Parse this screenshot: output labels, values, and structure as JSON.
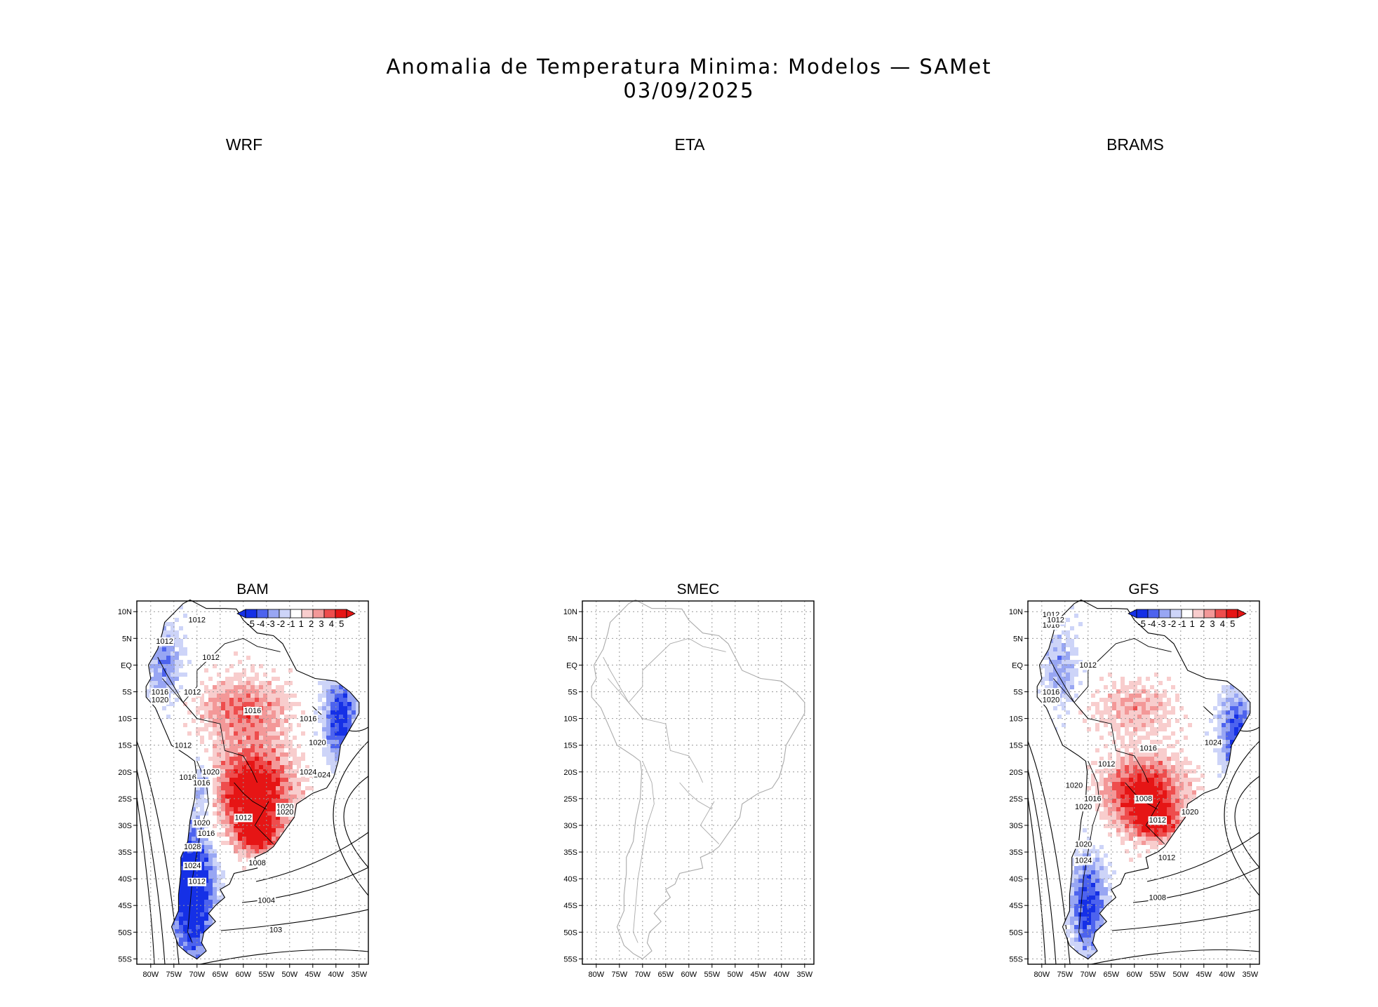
{
  "title": {
    "line1": "Anomalia de Temperatura Minima: Modelos — SAMet",
    "line2": "03/09/2025"
  },
  "panels_top": [
    {
      "label": "WRF"
    },
    {
      "label": "ETA"
    },
    {
      "label": "BRAMS"
    }
  ],
  "colors": {
    "cold_max": "#1530e6",
    "cold": "#4d63ee",
    "cool": "#98a6f3",
    "cool_light": "#cdd4f8",
    "warm_light": "#f8cdcd",
    "warm": "#f39898",
    "hot": "#ee4d4d",
    "hot_max": "#e61515",
    "grid": "#999999",
    "contour": "#000000",
    "gray_coast": "#aaaaaa"
  },
  "chart_data": [
    {
      "type": "heatmap",
      "panel": "BAM",
      "title": "BAM",
      "variable": "Minimum temperature anomaly (°C) with sea-level pressure contours (hPa)",
      "y_ticks": [
        "10N",
        "5N",
        "EQ",
        "5S",
        "10S",
        "15S",
        "20S",
        "25S",
        "30S",
        "35S",
        "40S",
        "45S",
        "50S",
        "55S"
      ],
      "x_ticks": [
        "80W",
        "75W",
        "70W",
        "65W",
        "60W",
        "55W",
        "50W",
        "45W",
        "40W",
        "35W"
      ],
      "lon_range": [
        -83,
        -33
      ],
      "lat_range": [
        -56,
        12
      ],
      "colorbar": {
        "labels": [
          "-5",
          "-4",
          "-3",
          "-2",
          "-1",
          "1",
          "2",
          "3",
          "4",
          "5"
        ]
      },
      "contour_labels": [
        "1012",
        "1012",
        "1012",
        "1016",
        "1020",
        "1012",
        "1016",
        "1016",
        "1012",
        "1020",
        "1024",
        "1016",
        "1020",
        "1024",
        "1020",
        "1016",
        "1020",
        "1016",
        "1012",
        "1020",
        "1028",
        "1024",
        "1012",
        "1008",
        "1004",
        "103"
      ],
      "fill_regions": [
        {
          "region": "Central and southern Brazil, Paraguay, southern Bolivia",
          "anomaly": 5
        },
        {
          "region": "Amazon basin",
          "anomaly": 3
        },
        {
          "region": "Northeast Brazil coast",
          "anomaly": -4
        },
        {
          "region": "Chile and Patagonia",
          "anomaly": -5
        },
        {
          "region": "Northwest South America",
          "anomaly": -3
        }
      ]
    },
    {
      "type": "heatmap",
      "panel": "SMEC",
      "title": "SMEC",
      "variable": "No data plotted (base map only)",
      "y_ticks": [
        "10N",
        "5N",
        "EQ",
        "5S",
        "10S",
        "15S",
        "20S",
        "25S",
        "30S",
        "35S",
        "40S",
        "45S",
        "50S",
        "55S"
      ],
      "x_ticks": [
        "80W",
        "75W",
        "70W",
        "65W",
        "60W",
        "55W",
        "50W",
        "45W",
        "40W",
        "35W"
      ],
      "lon_range": [
        -83,
        -33
      ],
      "lat_range": [
        -56,
        12
      ]
    },
    {
      "type": "heatmap",
      "panel": "GFS",
      "title": "GFS",
      "variable": "Minimum temperature anomaly (°C) with sea-level pressure contours (hPa)",
      "y_ticks": [
        "10N",
        "5N",
        "EQ",
        "5S",
        "10S",
        "15S",
        "20S",
        "25S",
        "30S",
        "35S",
        "40S",
        "45S",
        "50S",
        "55S"
      ],
      "x_ticks": [
        "80W",
        "75W",
        "70W",
        "65W",
        "60W",
        "55W",
        "50W",
        "45W",
        "40W",
        "35W"
      ],
      "lon_range": [
        -83,
        -33
      ],
      "lat_range": [
        -56,
        12
      ],
      "colorbar": {
        "labels": [
          "-5",
          "-4",
          "-3",
          "-2",
          "-1",
          "1",
          "2",
          "3",
          "4",
          "5"
        ]
      },
      "contour_labels": [
        "1012",
        "1016",
        "1012",
        "1016",
        "1020",
        "1012",
        "1020",
        "1016",
        "1012",
        "1024",
        "1008",
        "1012",
        "1020",
        "1016",
        "1020",
        "1020",
        "1024",
        "1012",
        "1008"
      ],
      "fill_regions": [
        {
          "region": "Central Brazil, Paraguay, northern Argentina",
          "anomaly": 5
        },
        {
          "region": "Amazon basin",
          "anomaly": 2
        },
        {
          "region": "Eastern Brazil coast",
          "anomaly": -4
        },
        {
          "region": "Patagonia",
          "anomaly": -4
        },
        {
          "region": "Northwest South America",
          "anomaly": -2
        }
      ]
    }
  ]
}
